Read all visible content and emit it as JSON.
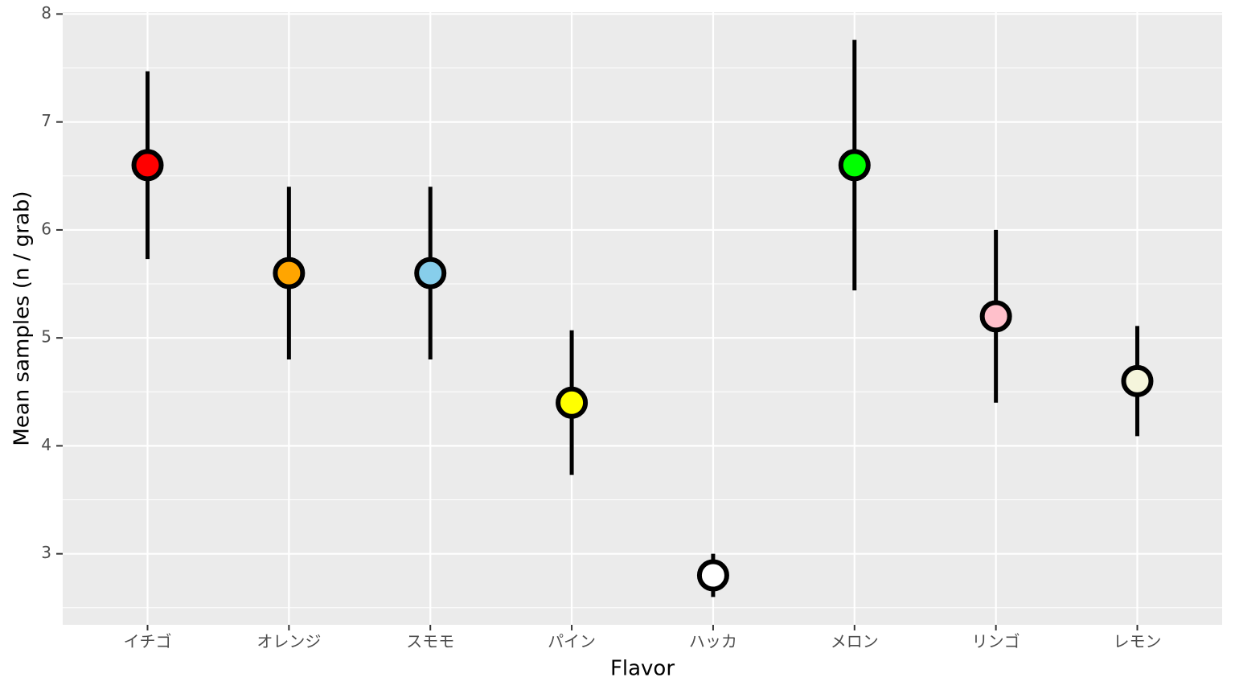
{
  "chart_data": {
    "type": "errorbar",
    "x_label": "Flavor",
    "y_label": "Mean samples (n / grab)",
    "categories": [
      "イチゴ",
      "オレンジ",
      "スモモ",
      "パイン",
      "ハッカ",
      "メロン",
      "リンゴ",
      "レモン"
    ],
    "values": [
      6.6,
      5.6,
      5.6,
      4.4,
      2.8,
      6.6,
      5.2,
      4.6
    ],
    "errors": [
      0.87,
      0.8,
      0.8,
      0.67,
      0.2,
      1.16,
      0.8,
      0.51
    ],
    "colors": [
      "#ff0000",
      "#ffa500",
      "#87ceeb",
      "#ffff00",
      "#ffffff",
      "#00ff00",
      "#ffc0cb",
      "#f5f5dc"
    ],
    "ylim": [
      2.342,
      8.018
    ],
    "yticks": [
      3,
      4,
      5,
      6,
      7,
      8
    ],
    "grid": true
  }
}
